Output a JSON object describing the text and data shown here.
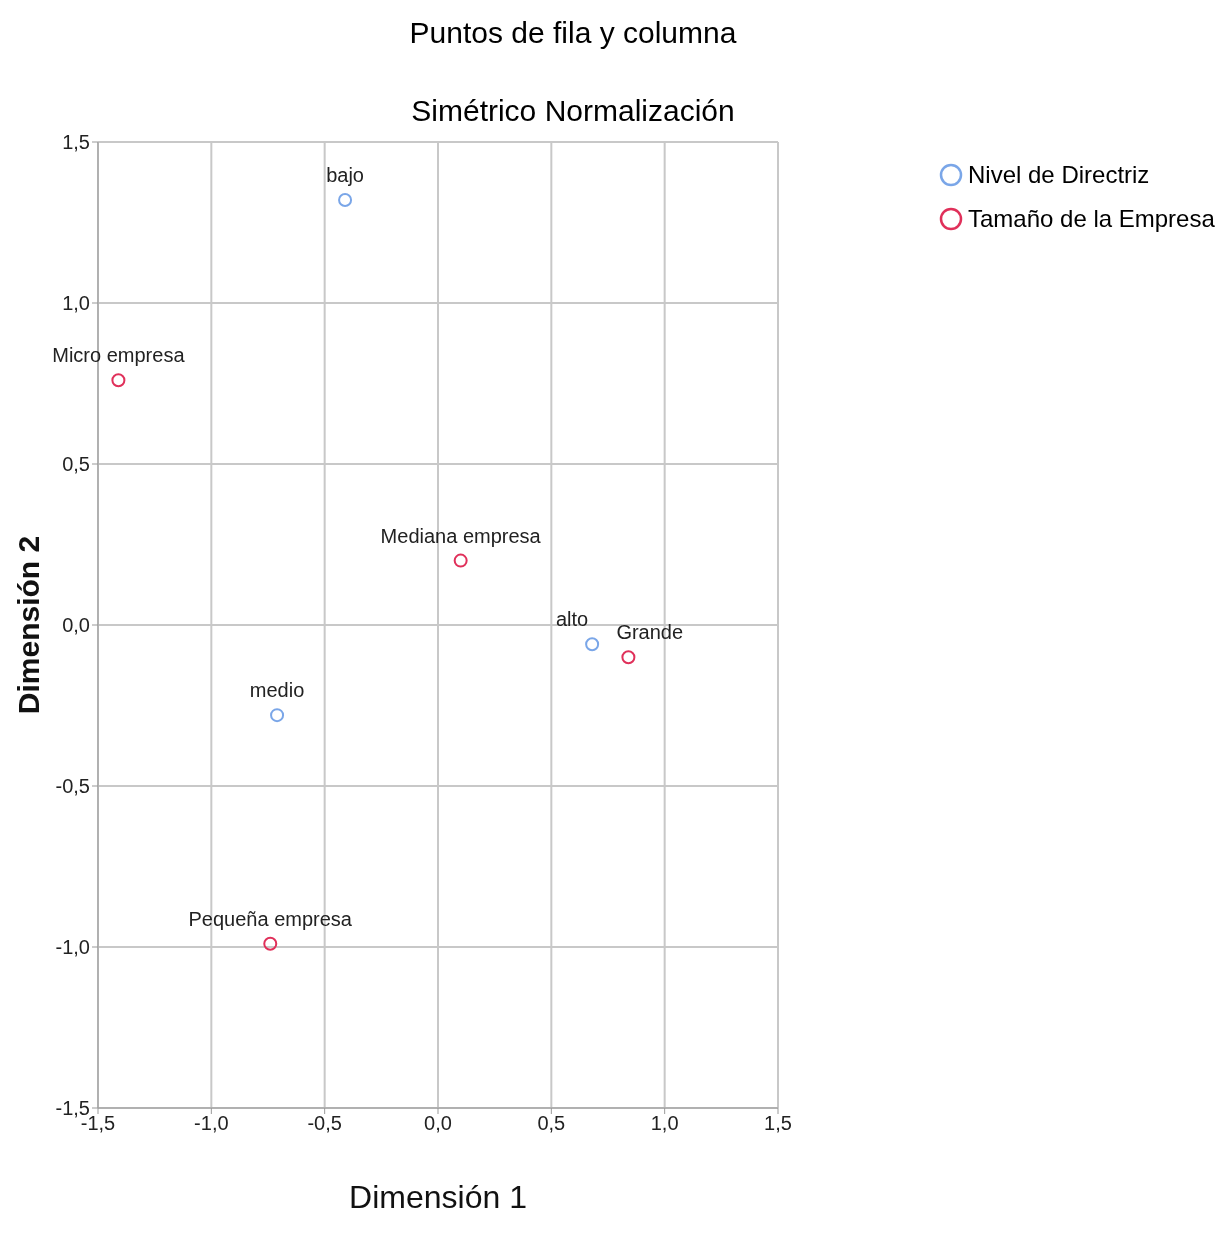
{
  "chart_data": {
    "type": "scatter",
    "title": "Puntos de fila y columna",
    "subtitle": "Simétrico Normalización",
    "xlabel": "Dimensión 1",
    "ylabel": "Dimensión 2",
    "series": [
      {
        "name": "Nivel de Directriz",
        "color": "#7aa6e8",
        "x": [
          -0.41,
          -0.71,
          0.68
        ],
        "values": [
          1.32,
          -0.28,
          -0.06
        ]
      },
      {
        "name": "Tamaño de la Empresa",
        "color": "#e0305a",
        "x": [
          -1.41,
          -0.74,
          0.1,
          0.84
        ],
        "values": [
          0.76,
          -0.99,
          0.2,
          -0.1
        ]
      }
    ],
    "annotations": [
      {
        "text": "bajo",
        "x": -0.41,
        "y": 1.32
      },
      {
        "text": "medio",
        "x": -0.71,
        "y": -0.28
      },
      {
        "text": "alto",
        "x": 0.68,
        "y": -0.06
      },
      {
        "text": "Micro empresa",
        "x": -1.41,
        "y": 0.76
      },
      {
        "text": "Pequeña empresa",
        "x": -0.74,
        "y": -0.99
      },
      {
        "text": "Mediana empresa",
        "x": 0.1,
        "y": 0.2
      },
      {
        "text": "Grande",
        "x": 0.84,
        "y": -0.1
      }
    ],
    "xlim": [
      -1.5,
      1.5
    ],
    "ylim": [
      -1.5,
      1.5
    ],
    "xticks": [
      {
        "value": -1.5,
        "label": "-1,5"
      },
      {
        "value": -1,
        "label": "-1,0"
      },
      {
        "value": -0.5,
        "label": "-0,5"
      },
      {
        "value": 0,
        "label": "0,0"
      },
      {
        "value": 0.5,
        "label": "0,5"
      },
      {
        "value": 1,
        "label": "1,0"
      },
      {
        "value": 1.5,
        "label": "1,5"
      }
    ],
    "yticks": [
      {
        "value": -1.5,
        "label": "-1,5"
      },
      {
        "value": -1,
        "label": "-1,0"
      },
      {
        "value": -0.5,
        "label": "-0,5"
      },
      {
        "value": 0,
        "label": "0,0"
      },
      {
        "value": 0.5,
        "label": "0,5"
      },
      {
        "value": 1,
        "label": "1,0"
      },
      {
        "value": 1.5,
        "label": "1,5"
      }
    ],
    "grid": true,
    "legend": "top right",
    "marker": "circle"
  }
}
